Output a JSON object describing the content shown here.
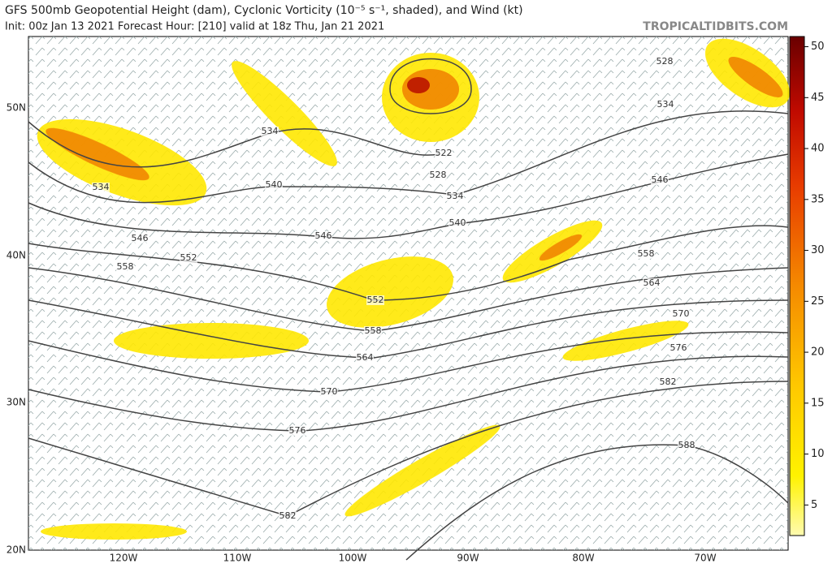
{
  "header": {
    "title": "GFS 500mb Geopotential Height (dam), Cyclonic Vorticity (10⁻⁵ s⁻¹, shaded), and Wind (kt)",
    "subtitle": "Init: 00z Jan 13 2021   Forecast Hour: [210]   valid at 18z Thu, Jan 21 2021",
    "watermark": "TROPICALTIDBITS.COM"
  },
  "map": {
    "lat_labels": [
      "50N",
      "40N",
      "30N",
      "20N"
    ],
    "lon_labels": [
      "120W",
      "110W",
      "100W",
      "90W",
      "80W",
      "70W"
    ],
    "contour_labels": [
      "534",
      "540",
      "546",
      "552",
      "558",
      "546",
      "534",
      "552",
      "558",
      "564",
      "570",
      "576",
      "582",
      "522",
      "528",
      "534",
      "540",
      "558",
      "564",
      "570",
      "576",
      "582",
      "588",
      "546",
      "534",
      "528"
    ]
  },
  "colorbar": {
    "lim": [
      2,
      51
    ],
    "ticks": [
      5,
      10,
      15,
      20,
      25,
      30,
      35,
      40,
      45,
      50
    ]
  }
}
